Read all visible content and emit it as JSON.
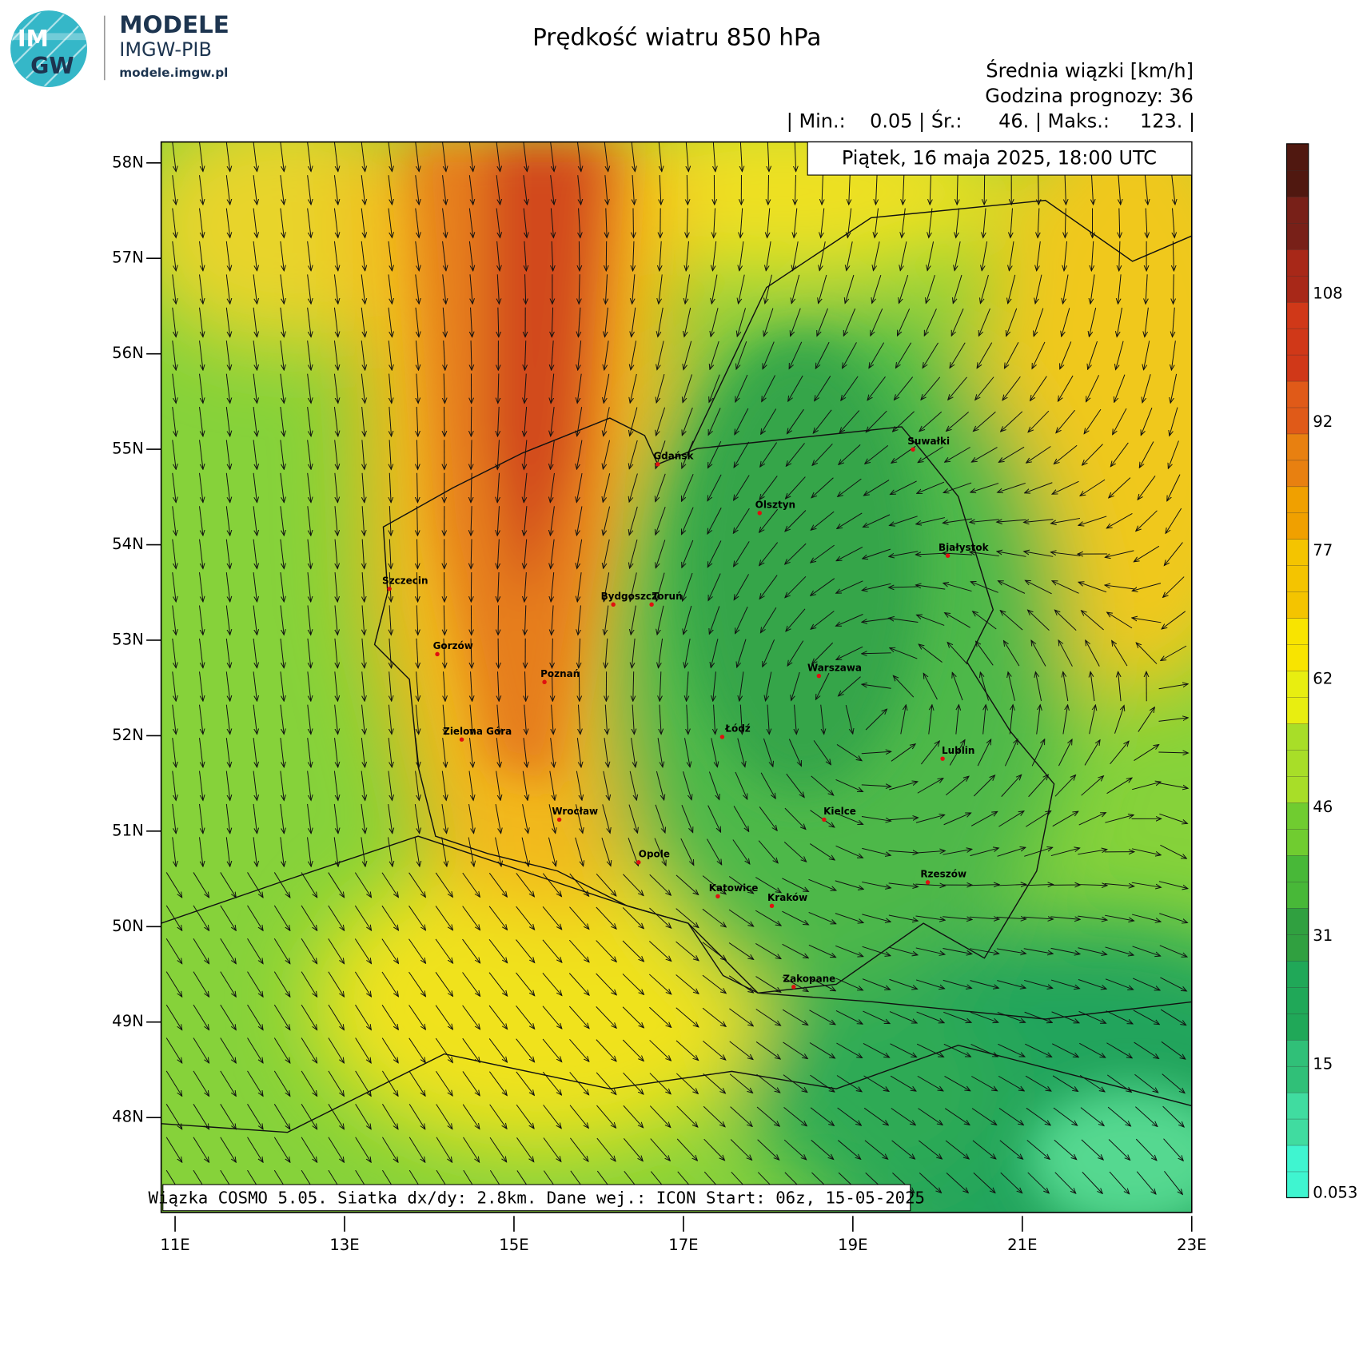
{
  "header": {
    "logo_top": "IM",
    "logo_bottom": "GW",
    "brand": "MODELE",
    "org": "IMGW-PIB",
    "url": "modele.imgw.pl"
  },
  "title": "Prędkość wiatru 850 hPa",
  "subtitle": "Średnia wiązki [km/h]",
  "forecast_hour": "Godzina prognozy: 36",
  "stats": "| Min.:    0.05 | Śr.:      46. | Maks.:     123. |",
  "date": "Piątek, 16 maja 2025, 18:00 UTC",
  "map": {
    "lat_labels": [
      "58N",
      "57N",
      "56N",
      "55N",
      "54N",
      "53N",
      "52N",
      "51N",
      "50N",
      "49N",
      "48N"
    ],
    "lon_labels": [
      "11E",
      "13E",
      "15E",
      "17E",
      "19E",
      "21E",
      "23E"
    ],
    "cities": [
      "Gdańsk",
      "Suwałki",
      "Olsztyn",
      "Białystok",
      "Szczecin",
      "Bydgoszcz",
      "Toruń",
      "Gorzów",
      "Poznań",
      "Warszawa",
      "Zielona Góra",
      "Łódź",
      "Lublin",
      "Wrocław",
      "Kielce",
      "Opole",
      "Rzeszów",
      "Katowice",
      "Kraków",
      "Zakopane"
    ],
    "footer": "Wiązka COSMO 5.05. Siatka dx/dy: 2.8km. Dane wej.: ICON Start: 06z, 15-05-2025"
  },
  "colorbar": {
    "labels": [
      "0.053",
      "15",
      "31",
      "46",
      "62",
      "77",
      "92",
      "108"
    ]
  }
}
